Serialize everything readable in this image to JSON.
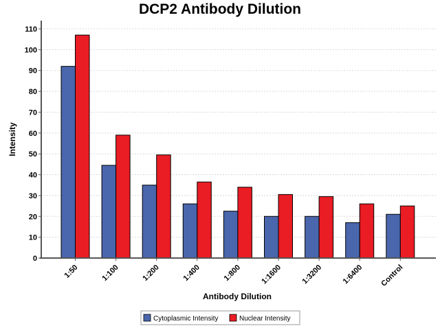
{
  "chart_data": {
    "type": "bar",
    "title": "DCP2 Antibody Dilution",
    "xlabel": "Antibody Dilution",
    "ylabel": "Intensity",
    "categories": [
      "1:50",
      "1:100",
      "1:200",
      "1:400",
      "1:800",
      "1:1600",
      "1:3200",
      "1:6400",
      "Control"
    ],
    "series": [
      {
        "name": "Cytoplasmic Intensity",
        "color": "#4a66ac",
        "values": [
          92,
          44.5,
          35,
          26,
          22.5,
          20,
          20,
          17,
          21
        ]
      },
      {
        "name": "Nuclear Intensity",
        "color": "#ea1c24",
        "values": [
          107,
          59,
          49.5,
          36.5,
          34,
          30.5,
          29.5,
          26,
          25
        ]
      }
    ],
    "ylim": [
      0,
      110
    ],
    "yticks": [
      0,
      10,
      20,
      30,
      40,
      50,
      60,
      70,
      80,
      90,
      100,
      110
    ],
    "grid": true,
    "legend_position": "bottom"
  }
}
